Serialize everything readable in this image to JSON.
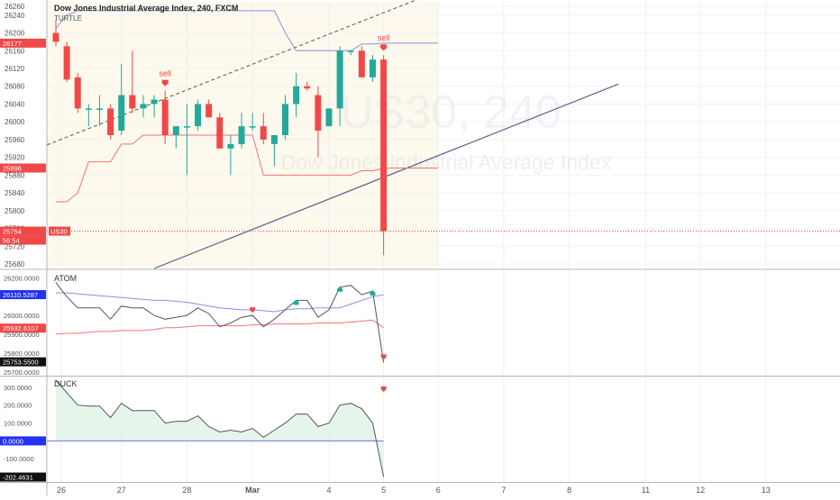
{
  "chart_data": {
    "type": "candlestick",
    "symbol_title": "Dow Jones Industrial Average Index, 240, FXCM",
    "overlay_label": "TURTLE",
    "watermark_symbol": "US30, 240",
    "watermark_name": "Dow Jones Industrial Average Index",
    "price_axis": {
      "min": 25670,
      "max": 26270,
      "ticks": [
        26260,
        26240,
        26200,
        26160,
        26120,
        26080,
        26040,
        26000,
        25960,
        25920,
        25880,
        25840,
        25800,
        25760,
        25720,
        25680
      ]
    },
    "x_axis": {
      "labels": [
        {
          "t": 0.5,
          "text": "26"
        },
        {
          "t": 6,
          "text": "27"
        },
        {
          "t": 12,
          "text": "28"
        },
        {
          "t": 18,
          "text": "Mar"
        },
        {
          "t": 25,
          "text": "4"
        },
        {
          "t": 30,
          "text": "5"
        },
        {
          "t": 35,
          "text": "6"
        },
        {
          "t": 41,
          "text": "7"
        },
        {
          "t": 47,
          "text": "8"
        },
        {
          "t": 54,
          "text": "11"
        },
        {
          "t": 59,
          "text": "12"
        },
        {
          "t": 65,
          "text": "13"
        }
      ]
    },
    "candles": [
      {
        "o": 26200,
        "h": 26230,
        "l": 26170,
        "c": 26180
      },
      {
        "o": 26170,
        "h": 26180,
        "l": 26090,
        "c": 26095
      },
      {
        "o": 26100,
        "h": 26110,
        "l": 26020,
        "c": 26030
      },
      {
        "o": 26030,
        "h": 26040,
        "l": 25990,
        "c": 26030
      },
      {
        "o": 26030,
        "h": 26060,
        "l": 25990,
        "c": 26030
      },
      {
        "o": 26030,
        "h": 26040,
        "l": 25960,
        "c": 25970
      },
      {
        "o": 25980,
        "h": 26130,
        "l": 25970,
        "c": 26060
      },
      {
        "o": 26060,
        "h": 26160,
        "l": 26020,
        "c": 26030
      },
      {
        "o": 26030,
        "h": 26060,
        "l": 26010,
        "c": 26040
      },
      {
        "o": 26040,
        "h": 26060,
        "l": 26010,
        "c": 26050
      },
      {
        "o": 26050,
        "h": 26070,
        "l": 25950,
        "c": 25970
      },
      {
        "o": 25970,
        "h": 25990,
        "l": 25940,
        "c": 25990
      },
      {
        "o": 25990,
        "h": 26040,
        "l": 25880,
        "c": 25990
      },
      {
        "o": 25990,
        "h": 26050,
        "l": 25980,
        "c": 26040
      },
      {
        "o": 26040,
        "h": 26050,
        "l": 26010,
        "c": 26010
      },
      {
        "o": 26010,
        "h": 26020,
        "l": 25940,
        "c": 25940
      },
      {
        "o": 25940,
        "h": 25970,
        "l": 25880,
        "c": 25950
      },
      {
        "o": 25950,
        "h": 26020,
        "l": 25940,
        "c": 25990
      },
      {
        "o": 25990,
        "h": 26020,
        "l": 25980,
        "c": 25990
      },
      {
        "o": 25990,
        "h": 26020,
        "l": 25950,
        "c": 25960
      },
      {
        "o": 25950,
        "h": 25970,
        "l": 25900,
        "c": 25970
      },
      {
        "o": 25970,
        "h": 26060,
        "l": 25960,
        "c": 26040
      },
      {
        "o": 26040,
        "h": 26110,
        "l": 26010,
        "c": 26080
      },
      {
        "o": 26080,
        "h": 26090,
        "l": 26070,
        "c": 26075
      },
      {
        "o": 26060,
        "h": 26080,
        "l": 25920,
        "c": 25980
      },
      {
        "o": 25990,
        "h": 26030,
        "l": 25990,
        "c": 26030
      },
      {
        "o": 26030,
        "h": 26170,
        "l": 25990,
        "c": 26160
      },
      {
        "o": 26160,
        "h": 26160,
        "l": 26150,
        "c": 26160
      },
      {
        "o": 26160,
        "h": 26170,
        "l": 26100,
        "c": 26100
      },
      {
        "o": 26100,
        "h": 26150,
        "l": 26090,
        "c": 26140
      },
      {
        "o": 26140,
        "h": 26150,
        "l": 25700,
        "c": 25754
      }
    ],
    "turtle_upper": [
      26210,
      26240,
      26250,
      26250,
      26250,
      26250,
      26250,
      26250,
      26250,
      26250,
      26250,
      26250,
      26250,
      26250,
      26250,
      26250,
      26250,
      26250,
      26250,
      26250,
      26250,
      26200,
      26160,
      26160,
      26160,
      26160,
      26160,
      26160,
      26175,
      26175,
      26177,
      26177,
      26177,
      26177,
      26177,
      26177
    ],
    "turtle_lower": [
      25820,
      25820,
      25840,
      25910,
      25910,
      25910,
      25950,
      25950,
      25970,
      25970,
      25970,
      25970,
      25970,
      25970,
      25970,
      25970,
      25970,
      25970,
      25970,
      25880,
      25880,
      25880,
      25880,
      25880,
      25880,
      25880,
      25880,
      25880,
      25890,
      25890,
      25895,
      25896,
      25896,
      25896,
      25896,
      25896
    ],
    "sell_signals": [
      {
        "t": 10,
        "label": "sell"
      },
      {
        "t": 30,
        "label": "sell"
      }
    ],
    "price_badges": [
      {
        "label": "26177",
        "color": "#f04848"
      },
      {
        "label": "25896",
        "color": "#f04848"
      },
      {
        "label": "25754",
        "color": "#f04848"
      }
    ],
    "symbol_tag": "US30",
    "countdown": "56:54",
    "current_price": 25754,
    "atom": {
      "label": "ATOM",
      "axis": {
        "min": 25680,
        "max": 26240,
        "ticks": [
          "26200.0000",
          "26000.0000",
          "25900.0000",
          "25800.0000",
          "25700.0000"
        ],
        "tick_values": [
          26200,
          26000,
          25900,
          25800,
          25700
        ]
      },
      "price_line": [
        26175,
        26100,
        26040,
        26040,
        26040,
        25980,
        26050,
        26040,
        26040,
        26000,
        25980,
        25990,
        26000,
        26040,
        26010,
        25940,
        25960,
        25990,
        26000,
        25940,
        25980,
        26030,
        26080,
        26080,
        25990,
        26030,
        26150,
        26160,
        26110,
        26130,
        25750
      ],
      "upper_line": [
        26120,
        26120,
        26115,
        26110,
        26105,
        26100,
        26095,
        26090,
        26085,
        26080,
        26080,
        26075,
        26070,
        26060,
        26050,
        26040,
        26035,
        26030,
        26030,
        26025,
        26020,
        26030,
        26035,
        26035,
        26040,
        26040,
        26040,
        26060,
        26080,
        26100,
        26110
      ],
      "lower_line": [
        25900,
        25905,
        25905,
        25910,
        25915,
        25915,
        25920,
        25920,
        25920,
        25925,
        25935,
        25935,
        25940,
        25945,
        25945,
        25945,
        25945,
        25945,
        25950,
        25950,
        25955,
        25955,
        25955,
        25955,
        25960,
        25960,
        25960,
        25965,
        25970,
        25975,
        25935
      ],
      "badges": [
        "26110.5287",
        "25932.6107",
        "25753.5500"
      ],
      "markers": [
        {
          "t": 18,
          "dir": "down",
          "color": "#f04848"
        },
        {
          "t": 22,
          "dir": "up",
          "color": "#22a99b"
        },
        {
          "t": 26,
          "dir": "up",
          "color": "#22a99b"
        },
        {
          "t": 29,
          "dir": "up",
          "color": "#22a99b"
        },
        {
          "t": 30,
          "dir": "down",
          "color": "#f04848"
        }
      ]
    },
    "duck": {
      "label": "DUCK",
      "axis": {
        "min": -230,
        "max": 360,
        "ticks": [
          "300.0000",
          "200.0000",
          "100.0000",
          "-100.0000"
        ],
        "tick_values": [
          300,
          200,
          100,
          -100
        ]
      },
      "line": [
        340,
        270,
        200,
        195,
        195,
        130,
        210,
        170,
        170,
        170,
        100,
        110,
        110,
        140,
        80,
        50,
        60,
        50,
        70,
        20,
        60,
        100,
        150,
        150,
        80,
        100,
        200,
        210,
        180,
        100,
        -202
      ],
      "zero_badge": "0.0000",
      "last_badge": "-202.4631",
      "markers": [
        {
          "t": 30,
          "dir": "down",
          "color": "#f04848"
        }
      ]
    }
  }
}
